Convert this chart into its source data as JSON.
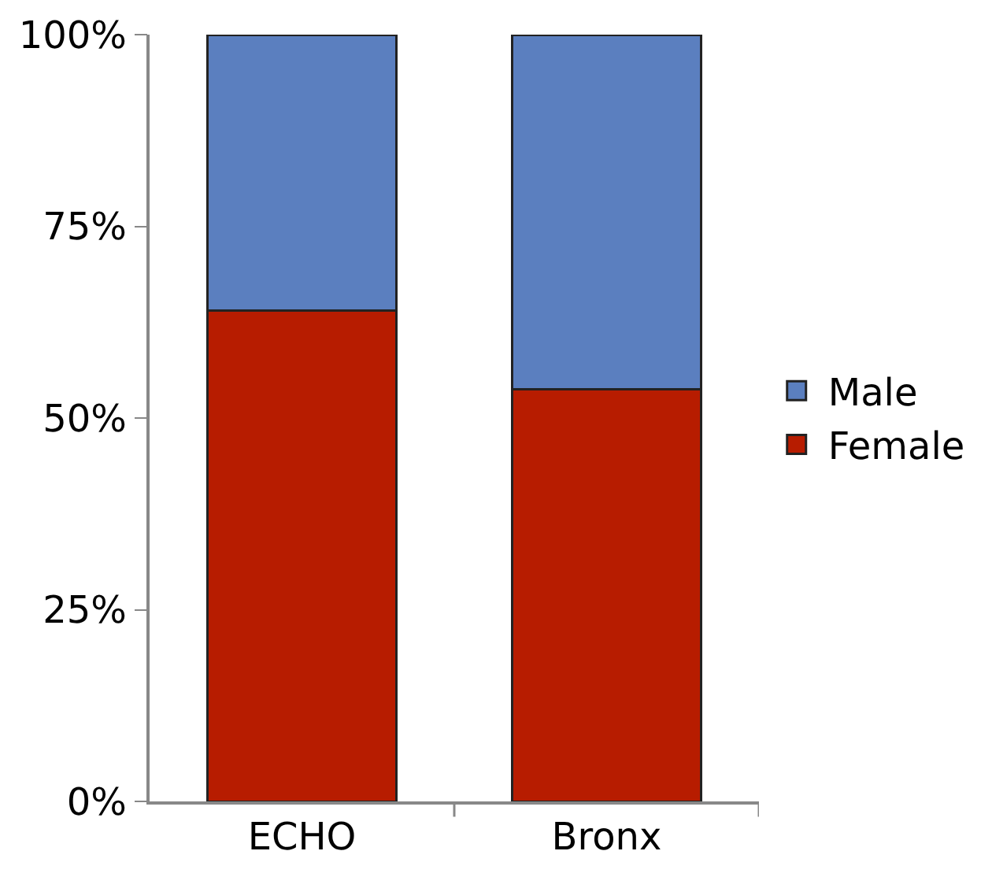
{
  "chart_data": {
    "type": "bar",
    "stacked": true,
    "categories": [
      "ECHO",
      "Bronx"
    ],
    "series": [
      {
        "name": "Female",
        "color": "#b71c00",
        "values": [
          64,
          53.7
        ]
      },
      {
        "name": "Male",
        "color": "#5b7fbf",
        "values": [
          36,
          46.3
        ]
      }
    ],
    "ylim": [
      0,
      100
    ],
    "yticks": [
      {
        "value": 0,
        "label": "0%"
      },
      {
        "value": 25,
        "label": "25%"
      },
      {
        "value": 50,
        "label": "50%"
      },
      {
        "value": 75,
        "label": "75%"
      },
      {
        "value": 100,
        "label": "100%"
      }
    ],
    "grid": false,
    "legend": "right"
  }
}
